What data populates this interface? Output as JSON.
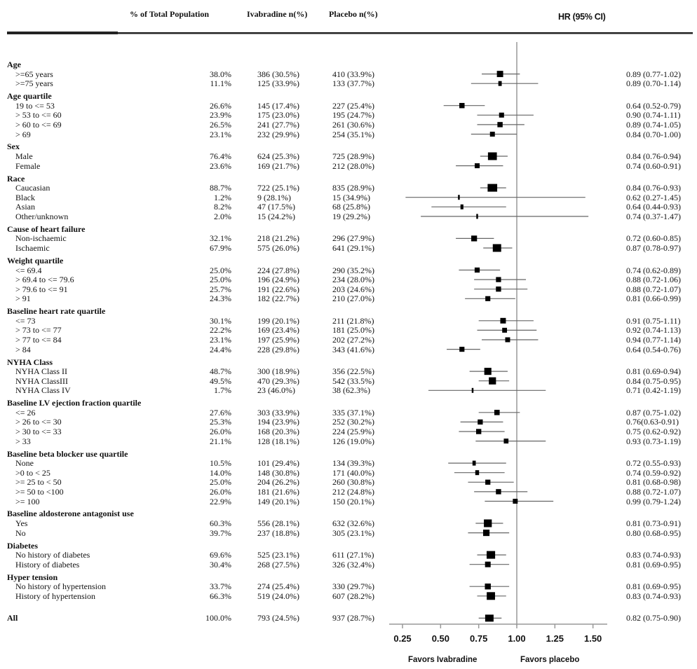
{
  "header": {
    "pct_col": "% of Total Population",
    "ivabradine_col": "Ivabradine n(%)",
    "placebo_col": "Placebo n(%)",
    "hr_col": "HR (95% CI)"
  },
  "chart_data": {
    "type": "forest",
    "xlabel_left": "Favors Ivabradine",
    "xlabel_right": "Favors placebo",
    "xticks": [
      "0.25",
      "0.50",
      "0.75",
      "1.00",
      "1.25",
      "1.50"
    ],
    "xlim": [
      0.16,
      1.58
    ],
    "reference_line": 1.0,
    "rows": [
      {
        "type": "group",
        "label": "Age"
      },
      {
        "label": ">=65 years",
        "pct": "38.0%",
        "iva": "386 (30.5%)",
        "pla": "410 (33.9%)",
        "hr_text": "0.89 (0.77-1.02)",
        "hr": 0.89,
        "lo": 0.77,
        "hi": 1.02,
        "w": 38.0
      },
      {
        "label": ">=75 years",
        "pct": "11.1%",
        "iva": "125 (33.9%)",
        "pla": "133 (37.7%)",
        "hr_text": "0.89 (0.70-1.14)",
        "hr": 0.89,
        "lo": 0.7,
        "hi": 1.14,
        "w": 11.1
      },
      {
        "type": "group",
        "label": "Age quartile"
      },
      {
        "label": "19 to <= 53",
        "pct": "26.6%",
        "iva": "145 (17.4%)",
        "pla": "227 (25.4%)",
        "hr_text": "0.64 (0.52-0.79)",
        "hr": 0.64,
        "lo": 0.52,
        "hi": 0.79,
        "w": 26.6
      },
      {
        "label": "> 53 to <= 60",
        "pct": "23.9%",
        "iva": "175 (23.0%)",
        "pla": "195 (24.7%)",
        "hr_text": "0.90 (0.74-1.11)",
        "hr": 0.9,
        "lo": 0.74,
        "hi": 1.11,
        "w": 23.9
      },
      {
        "label": "> 60 to <= 69",
        "pct": "26.5%",
        "iva": "241 (27.7%)",
        "pla": "261 (30.6%)",
        "hr_text": "0.89 (0.74-1.05)",
        "hr": 0.89,
        "lo": 0.74,
        "hi": 1.05,
        "w": 26.5
      },
      {
        "label": "> 69",
        "pct": "23.1%",
        "iva": "232 (29.9%)",
        "pla": "254 (35.1%)",
        "hr_text": "0.84 (0.70-1.00)",
        "hr": 0.84,
        "lo": 0.7,
        "hi": 1.0,
        "w": 23.1
      },
      {
        "type": "group",
        "label": "Sex"
      },
      {
        "label": "Male",
        "pct": "76.4%",
        "iva": "624 (25.3%)",
        "pla": "725 (28.9%)",
        "hr_text": "0.84 (0.76-0.94)",
        "hr": 0.84,
        "lo": 0.76,
        "hi": 0.94,
        "w": 76.4
      },
      {
        "label": "Female",
        "pct": "23.6%",
        "iva": "169 (21.7%)",
        "pla": "212 (28.0%)",
        "hr_text": "0.74 (0.60-0.91)",
        "hr": 0.74,
        "lo": 0.6,
        "hi": 0.91,
        "w": 23.6
      },
      {
        "type": "group",
        "label": "Race"
      },
      {
        "label": "Caucasian",
        "pct": "88.7%",
        "iva": "722 (25.1%)",
        "pla": "835 (28.9%)",
        "hr_text": "0.84 (0.76-0.93)",
        "hr": 0.84,
        "lo": 0.76,
        "hi": 0.93,
        "w": 88.7
      },
      {
        "label": "Black",
        "pct": "1.2%",
        "iva": "9 (28.1%)",
        "pla": "15 (34.9%)",
        "hr_text": "0.62 (0.27-1.45)",
        "hr": 0.62,
        "lo": 0.27,
        "hi": 1.45,
        "w": 1.2
      },
      {
        "label": "Asian",
        "pct": "8.2%",
        "iva": "47 (17.5%)",
        "pla": "68 (25.8%)",
        "hr_text": "0.64 (0.44-0.93)",
        "hr": 0.64,
        "lo": 0.44,
        "hi": 0.93,
        "w": 8.2
      },
      {
        "label": "Other/unknown",
        "pct": "2.0%",
        "iva": "15 (24.2%)",
        "pla": "19 (29.2%)",
        "hr_text": "0.74 (0.37-1.47)",
        "hr": 0.74,
        "lo": 0.37,
        "hi": 1.47,
        "w": 2.0
      },
      {
        "type": "group",
        "label": "Cause of heart failure"
      },
      {
        "label": "Non-ischaemic",
        "pct": "32.1%",
        "iva": "218 (21.2%)",
        "pla": "296 (27.9%)",
        "hr_text": "0.72 (0.60-0.85)",
        "hr": 0.72,
        "lo": 0.6,
        "hi": 0.85,
        "w": 32.1
      },
      {
        "label": "Ischaemic",
        "pct": "67.9%",
        "iva": "575 (26.0%)",
        "pla": "641 (29.1%)",
        "hr_text": "0.87 (0.78-0.97)",
        "hr": 0.87,
        "lo": 0.78,
        "hi": 0.97,
        "w": 67.9
      },
      {
        "type": "group",
        "label": "Weight quartile"
      },
      {
        "label": "<= 69.4",
        "pct": "25.0%",
        "iva": "224 (27.8%)",
        "pla": "290 (35.2%)",
        "hr_text": "0.74 (0.62-0.89)",
        "hr": 0.74,
        "lo": 0.62,
        "hi": 0.89,
        "w": 25.0
      },
      {
        "label": "> 69.4 to <= 79.6",
        "pct": "25.0%",
        "iva": "196 (24.9%)",
        "pla": "234 (28.0%)",
        "hr_text": "0.88 (0.72-1.06)",
        "hr": 0.88,
        "lo": 0.72,
        "hi": 1.06,
        "w": 25.0
      },
      {
        "label": "> 79.6 to <= 91",
        "pct": "25.7%",
        "iva": "191 (22.6%)",
        "pla": "203 (24.6%)",
        "hr_text": "0.88 (0.72-1.07)",
        "hr": 0.88,
        "lo": 0.72,
        "hi": 1.07,
        "w": 25.7
      },
      {
        "label": "> 91",
        "pct": "24.3%",
        "iva": "182 (22.7%)",
        "pla": "210 (27.0%)",
        "hr_text": "0.81 (0.66-0.99)",
        "hr": 0.81,
        "lo": 0.66,
        "hi": 0.99,
        "w": 24.3
      },
      {
        "type": "group",
        "label": "Baseline heart rate quartile"
      },
      {
        "label": "<= 73",
        "pct": "30.1%",
        "iva": "199 (20.1%)",
        "pla": "211 (21.8%)",
        "hr_text": "0.91 (0.75-1.11)",
        "hr": 0.91,
        "lo": 0.75,
        "hi": 1.11,
        "w": 30.1
      },
      {
        "label": "> 73 to <= 77",
        "pct": "22.2%",
        "iva": "169 (23.4%)",
        "pla": "181 (25.0%)",
        "hr_text": "0.92 (0.74-1.13)",
        "hr": 0.92,
        "lo": 0.74,
        "hi": 1.13,
        "w": 22.2
      },
      {
        "label": "> 77 to <= 84",
        "pct": "23.1%",
        "iva": "197 (25.9%)",
        "pla": "202 (27.2%)",
        "hr_text": "0.94 (0.77-1.14)",
        "hr": 0.94,
        "lo": 0.77,
        "hi": 1.14,
        "w": 23.1
      },
      {
        "label": "> 84",
        "pct": "24.4%",
        "iva": "228 (29.8%)",
        "pla": "343 (41.6%)",
        "hr_text": "0.64 (0.54-0.76)",
        "hr": 0.64,
        "lo": 0.54,
        "hi": 0.76,
        "w": 24.4
      },
      {
        "type": "group",
        "label": "NYHA Class"
      },
      {
        "label": "NYHA Class II",
        "pct": "48.7%",
        "iva": "300 (18.9%)",
        "pla": "356 (22.5%)",
        "hr_text": "0.81 (0.69-0.94)",
        "hr": 0.81,
        "lo": 0.69,
        "hi": 0.94,
        "w": 48.7
      },
      {
        "label": "NYHA ClassIII",
        "pct": "49.5%",
        "iva": "470 (29.3%)",
        "pla": "542 (33.5%)",
        "hr_text": "0.84 (0.75-0.95)",
        "hr": 0.84,
        "lo": 0.75,
        "hi": 0.95,
        "w": 49.5
      },
      {
        "label": "NYHA Class IV",
        "pct": "1.7%",
        "iva": "23 (46.0%)",
        "pla": "38 (62.3%)",
        "hr_text": "0.71 (0.42-1.19)",
        "hr": 0.71,
        "lo": 0.42,
        "hi": 1.19,
        "w": 1.7
      },
      {
        "type": "group",
        "label": "Baseline LV ejection fraction quartile"
      },
      {
        "label": "<= 26",
        "pct": "27.6%",
        "iva": "303 (33.9%)",
        "pla": "335 (37.1%)",
        "hr_text": "0.87 (0.75-1.02)",
        "hr": 0.87,
        "lo": 0.75,
        "hi": 1.02,
        "w": 27.6
      },
      {
        "label": "> 26 to <= 30",
        "pct": "25.3%",
        "iva": "194 (23.9%)",
        "pla": "252 (30.2%)",
        "hr_text": "0.76(0.63-0.91)",
        "hr": 0.76,
        "lo": 0.63,
        "hi": 0.91,
        "w": 25.3
      },
      {
        "label": "> 30 to <= 33",
        "pct": "26.0%",
        "iva": "168 (20.3%)",
        "pla": "224 (25.9%)",
        "hr_text": "0.75 (0.62-0.92)",
        "hr": 0.75,
        "lo": 0.62,
        "hi": 0.92,
        "w": 26.0
      },
      {
        "label": "> 33",
        "pct": "21.1%",
        "iva": "128 (18.1%)",
        "pla": "126 (19.0%)",
        "hr_text": "0.93 (0.73-1.19)",
        "hr": 0.93,
        "lo": 0.73,
        "hi": 1.19,
        "w": 21.1
      },
      {
        "type": "group",
        "label": "Baseline beta blocker use quartile"
      },
      {
        "label": "None",
        "pct": "10.5%",
        "iva": "101 (29.4%)",
        "pla": "134 (39.3%)",
        "hr_text": "0.72 (0.55-0.93)",
        "hr": 0.72,
        "lo": 0.55,
        "hi": 0.93,
        "w": 10.5
      },
      {
        "label": ">0 to < 25",
        "pct": "14.0%",
        "iva": "148 (30.8%)",
        "pla": "171 (40.0%)",
        "hr_text": "0.74 (0.59-0.92)",
        "hr": 0.74,
        "lo": 0.59,
        "hi": 0.92,
        "w": 14.0
      },
      {
        "label": ">= 25 to < 50",
        "pct": "25.0%",
        "iva": "204 (26.2%)",
        "pla": "260 (30.8%)",
        "hr_text": "0.81 (0.68-0.98)",
        "hr": 0.81,
        "lo": 0.68,
        "hi": 0.98,
        "w": 25.0
      },
      {
        "label": ">= 50 to <100",
        "pct": "26.0%",
        "iva": "181 (21.6%)",
        "pla": "212 (24.8%)",
        "hr_text": "0.88 (0.72-1.07)",
        "hr": 0.88,
        "lo": 0.72,
        "hi": 1.07,
        "w": 26.0
      },
      {
        "label": ">= 100",
        "pct": "22.9%",
        "iva": "149 (20.1%)",
        "pla": "150 (20.1%)",
        "hr_text": "0.99 (0.79-1.24)",
        "hr": 0.99,
        "lo": 0.79,
        "hi": 1.24,
        "w": 22.9
      },
      {
        "type": "group",
        "label": "Baseline aldosterone antagonist use"
      },
      {
        "label": "Yes",
        "pct": "60.3%",
        "iva": "556 (28.1%)",
        "pla": "632 (32.6%)",
        "hr_text": "0.81 (0.73-0.91)",
        "hr": 0.81,
        "lo": 0.73,
        "hi": 0.91,
        "w": 60.3
      },
      {
        "label": "No",
        "pct": "39.7%",
        "iva": "237 (18.8%)",
        "pla": "305 (23.1%)",
        "hr_text": "0.80 (0.68-0.95)",
        "hr": 0.8,
        "lo": 0.68,
        "hi": 0.95,
        "w": 39.7
      },
      {
        "type": "group",
        "label": "Diabetes"
      },
      {
        "label": "No history of diabetes",
        "pct": "69.6%",
        "iva": "525 (23.1%)",
        "pla": "611 (27.1%)",
        "hr_text": "0.83 (0.74-0.93)",
        "hr": 0.83,
        "lo": 0.74,
        "hi": 0.93,
        "w": 69.6
      },
      {
        "label": "History of diabetes",
        "pct": "30.4%",
        "iva": "268 (27.5%)",
        "pla": "326 (32.4%)",
        "hr_text": "0.81 (0.69-0.95)",
        "hr": 0.81,
        "lo": 0.69,
        "hi": 0.95,
        "w": 30.4
      },
      {
        "type": "group",
        "label": "Hyper tension"
      },
      {
        "label": "No history of hypertension",
        "pct": "33.7%",
        "iva": "274 (25.4%)",
        "pla": "330 (29.7%)",
        "hr_text": "0.81 (0.69-0.95)",
        "hr": 0.81,
        "lo": 0.69,
        "hi": 0.95,
        "w": 33.7
      },
      {
        "label": "History of hypertension",
        "pct": "66.3%",
        "iva": "519 (24.0%)",
        "pla": "607 (28.2%)",
        "hr_text": "0.83 (0.74-0.93)",
        "hr": 0.83,
        "lo": 0.74,
        "hi": 0.93,
        "w": 66.3
      },
      {
        "type": "all",
        "label": "All",
        "pct": "100.0%",
        "iva": "793 (24.5%)",
        "pla": "937 (28.7%)",
        "hr_text": "0.82 (0.75-0.90)",
        "hr": 0.82,
        "lo": 0.75,
        "hi": 0.9,
        "w": 100
      }
    ]
  }
}
